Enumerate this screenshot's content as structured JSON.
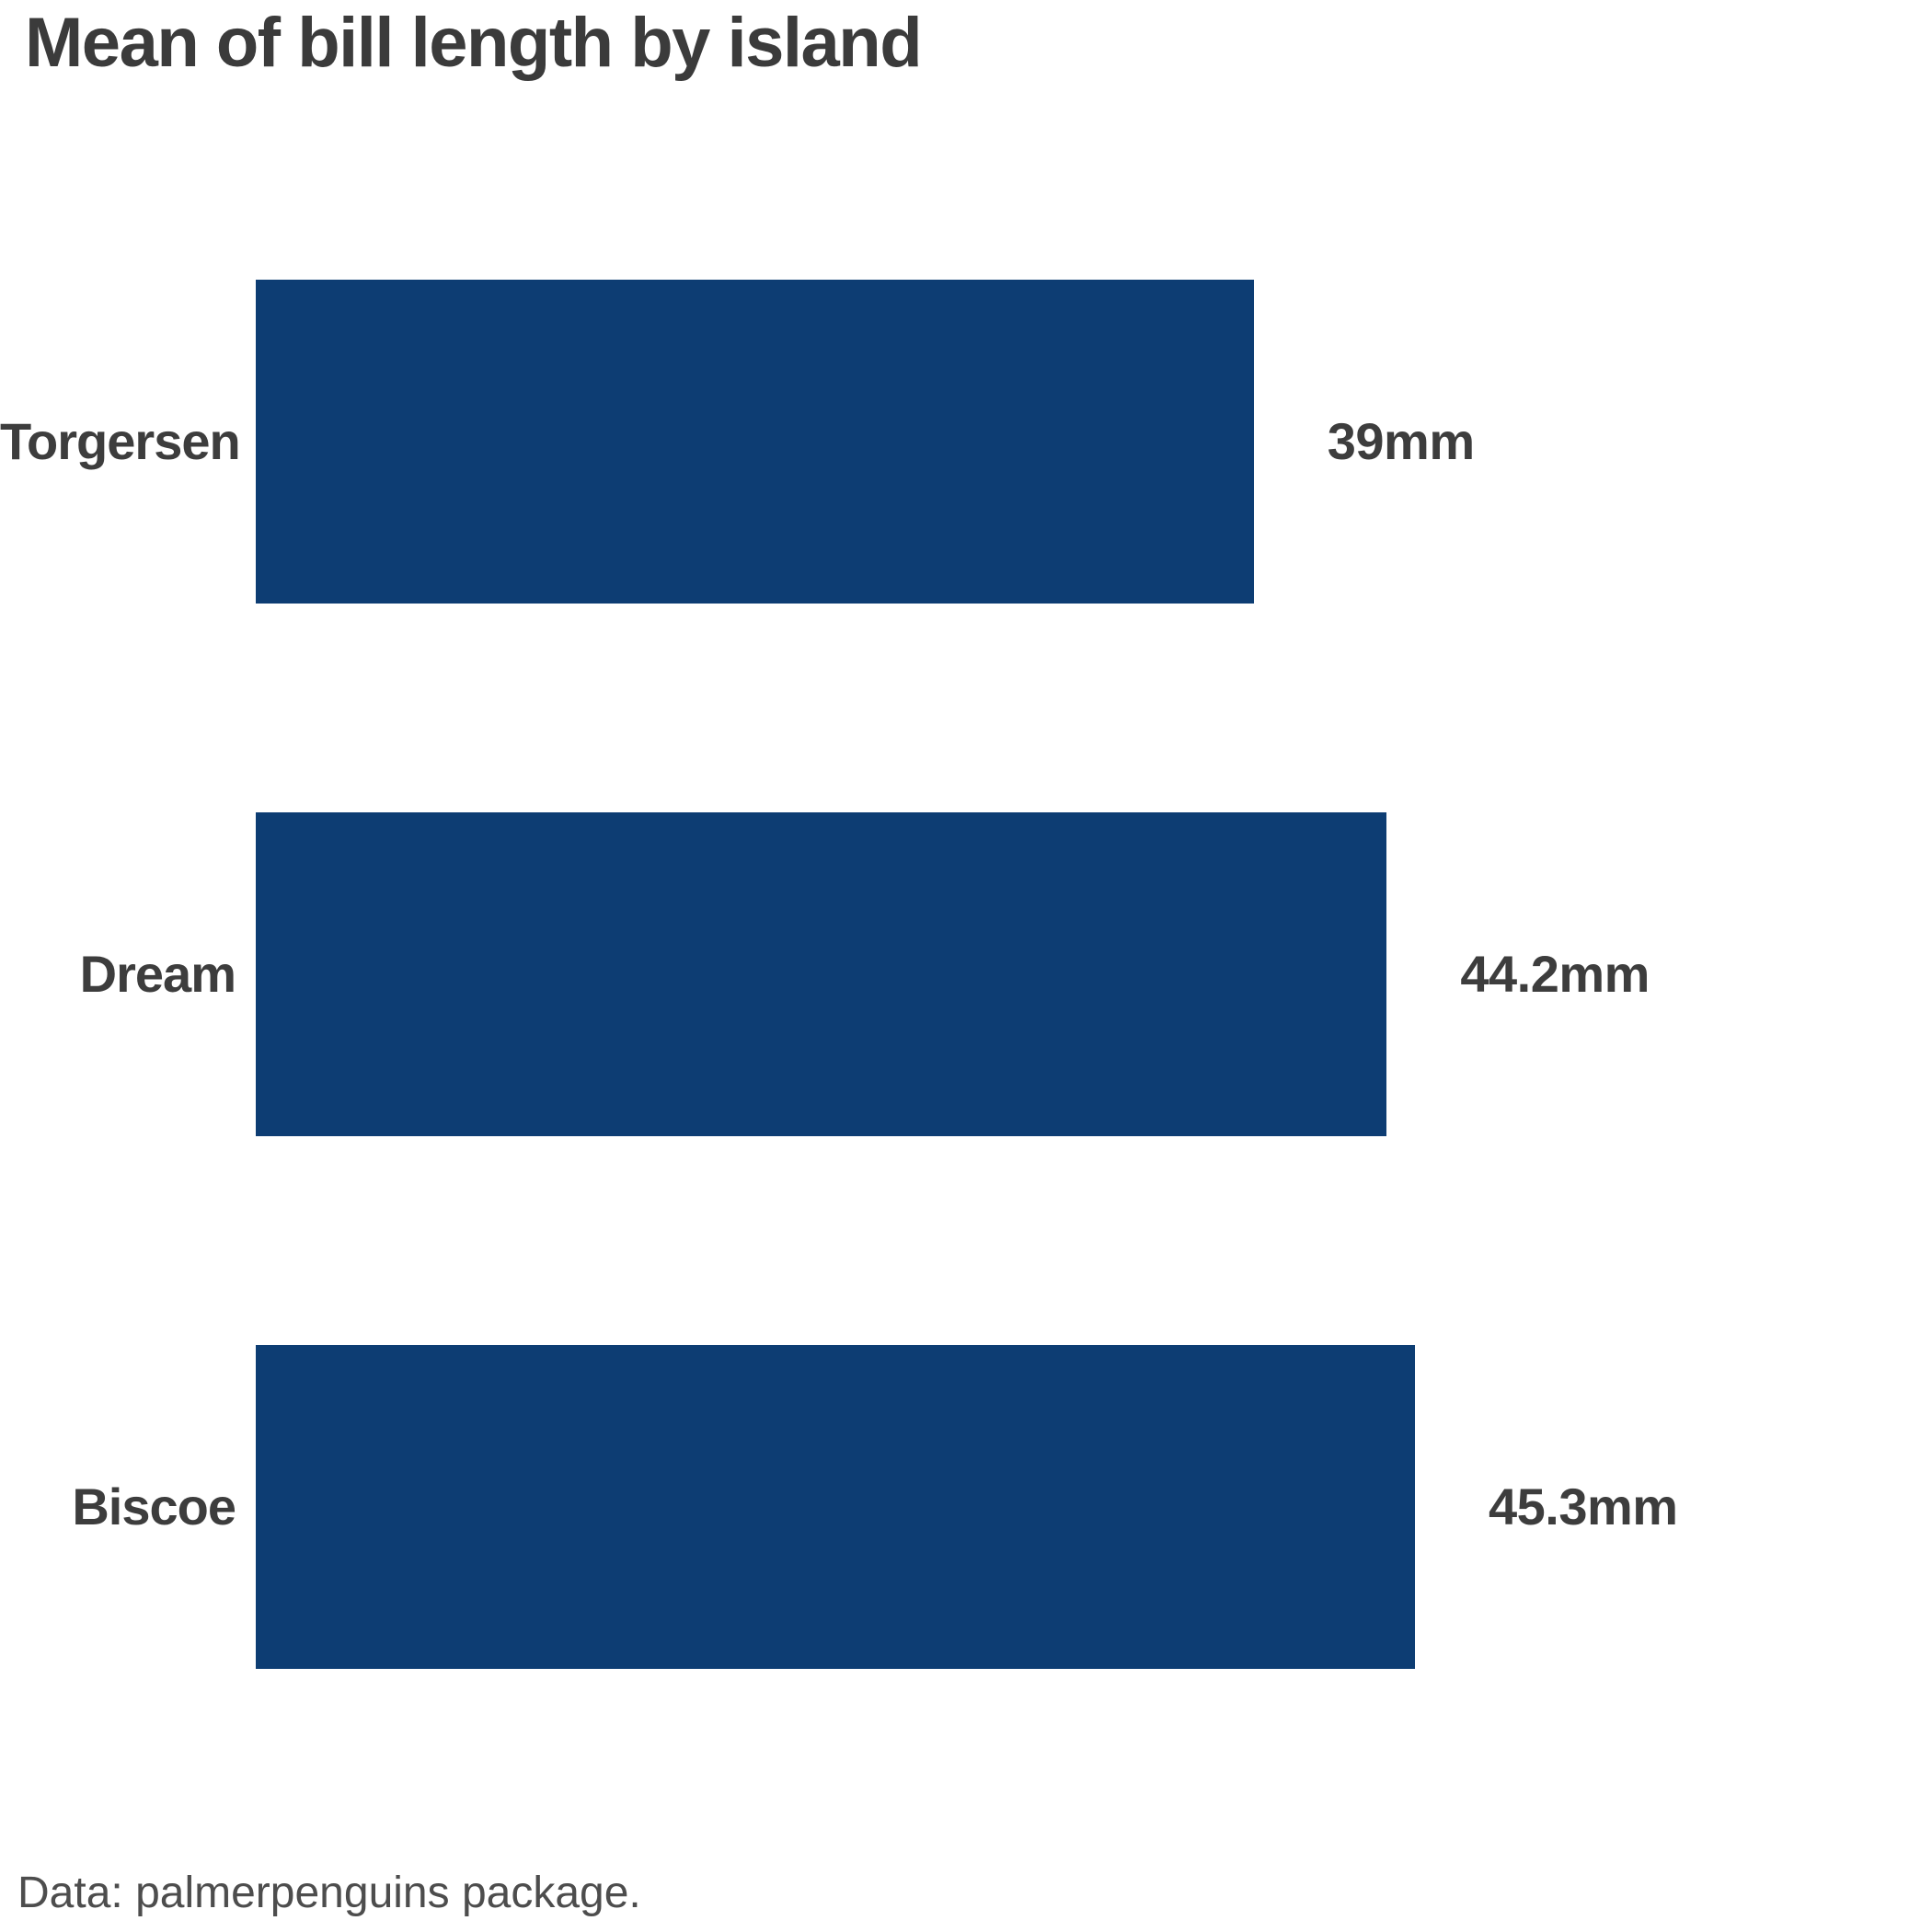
{
  "chart_data": {
    "type": "bar",
    "orientation": "horizontal",
    "title": "Mean of bill length by island",
    "categories": [
      "Torgersen",
      "Dream",
      "Biscoe"
    ],
    "values": [
      39,
      44.2,
      45.3
    ],
    "value_labels": [
      "39mm",
      "44.2mm",
      "45.3mm"
    ],
    "unit": "mm",
    "xlim": [
      0,
      45.3
    ],
    "grid": false,
    "legend": false,
    "bar_color": "#0d3d73"
  },
  "footer": {
    "note": "Data: palmerpenguins package."
  },
  "colors": {
    "background": "#ffffff",
    "bar": "#0d3d73",
    "title_text": "#3b3b3b",
    "label_text": "#3d3d3d",
    "footer_text": "#4d4d4d"
  }
}
